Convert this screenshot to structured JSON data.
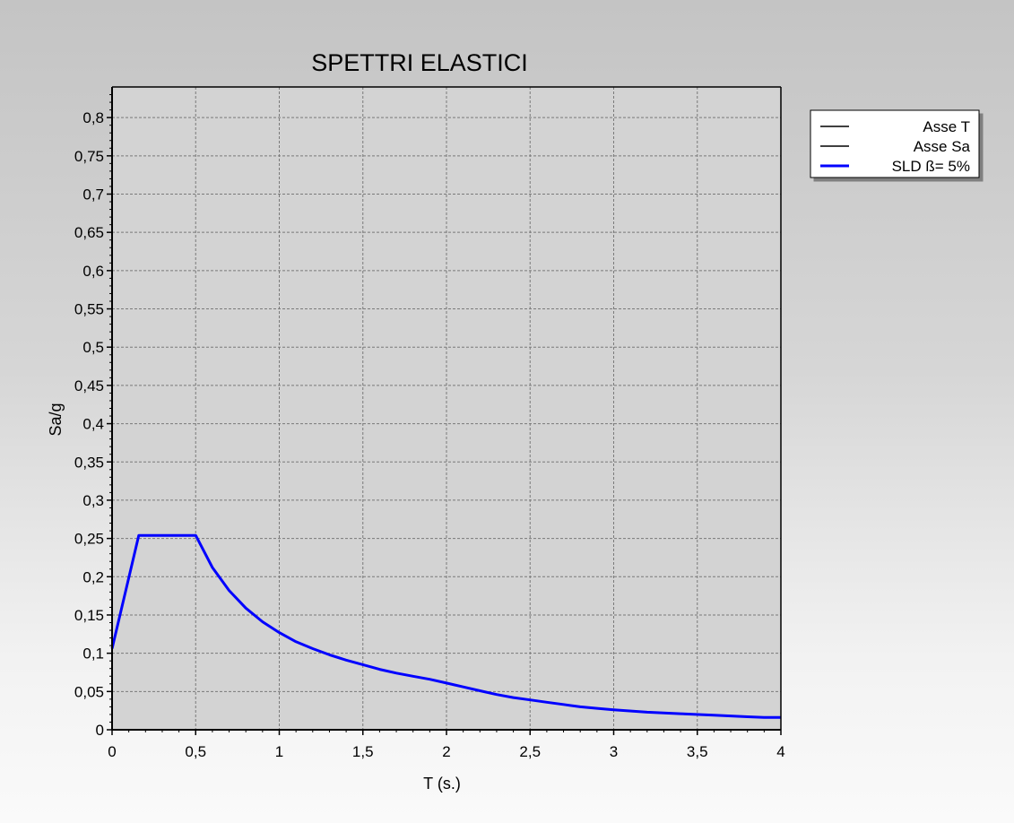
{
  "chart_data": {
    "type": "line",
    "title": "SPETTRI ELASTICI",
    "xlabel": "T (s.)",
    "ylabel": "Sa/g",
    "xlim": [
      0,
      4
    ],
    "ylim": [
      0,
      0.84
    ],
    "x_ticks": [
      0,
      0.5,
      1,
      1.5,
      2,
      2.5,
      3,
      3.5,
      4
    ],
    "x_tick_labels": [
      "0",
      "0,5",
      "1",
      "1,5",
      "2",
      "2,5",
      "3",
      "3,5",
      "4"
    ],
    "y_ticks": [
      0,
      0.05,
      0.1,
      0.15,
      0.2,
      0.25,
      0.3,
      0.35,
      0.4,
      0.45,
      0.5,
      0.55,
      0.6,
      0.65,
      0.7,
      0.75,
      0.8
    ],
    "y_tick_labels": [
      "0",
      "0,05",
      "0,1",
      "0,15",
      "0,2",
      "0,25",
      "0,3",
      "0,35",
      "0,4",
      "0,45",
      "0,5",
      "0,55",
      "0,6",
      "0,65",
      "0,7",
      "0,75",
      "0,8"
    ],
    "grid": true,
    "legend_position": "top-right",
    "legend": [
      {
        "label": "Asse T",
        "color": "#000000"
      },
      {
        "label": "Asse Sa",
        "color": "#000000"
      },
      {
        "label": "SLD ß= 5%",
        "color": "#0000ff"
      }
    ],
    "series": [
      {
        "name": "SLD ß= 5%",
        "color": "#0000ff",
        "x": [
          0,
          0.16,
          0.5,
          0.6,
          0.7,
          0.8,
          0.9,
          1.0,
          1.1,
          1.2,
          1.3,
          1.4,
          1.5,
          1.6,
          1.7,
          1.8,
          1.9,
          2.0,
          2.1,
          2.2,
          2.3,
          2.4,
          2.5,
          2.6,
          2.7,
          2.8,
          2.9,
          3.0,
          3.2,
          3.4,
          3.6,
          3.8,
          3.9,
          4.0
        ],
        "y": [
          0.106,
          0.254,
          0.254,
          0.212,
          0.182,
          0.159,
          0.141,
          0.127,
          0.115,
          0.106,
          0.098,
          0.091,
          0.085,
          0.079,
          0.074,
          0.07,
          0.066,
          0.061,
          0.056,
          0.051,
          0.046,
          0.042,
          0.039,
          0.036,
          0.033,
          0.03,
          0.028,
          0.026,
          0.023,
          0.021,
          0.019,
          0.017,
          0.016,
          0.016
        ]
      }
    ]
  }
}
